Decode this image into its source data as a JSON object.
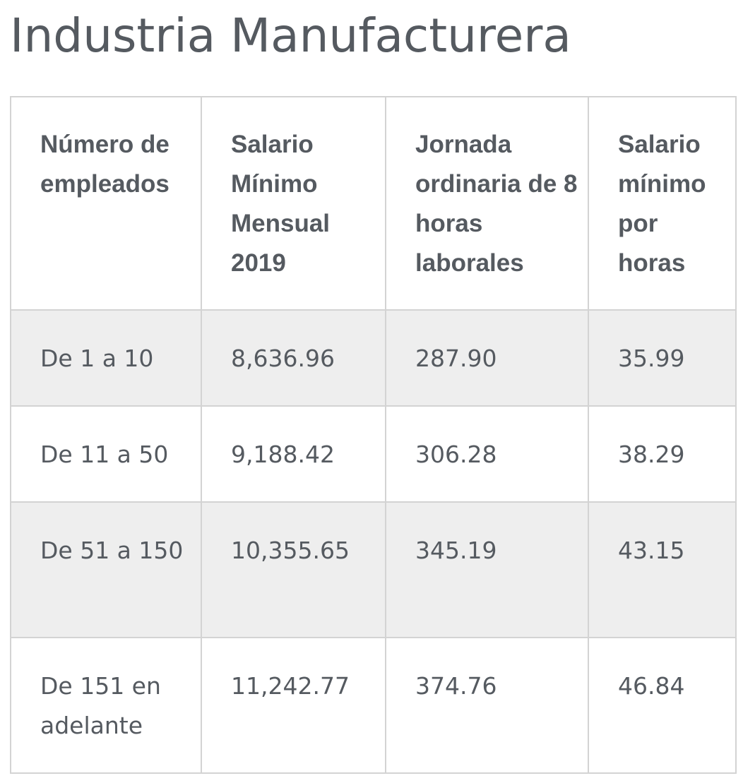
{
  "page": {
    "title": "Industria Manufacturera"
  },
  "table": {
    "headers": [
      "Número de empleados",
      "Salario Mínimo Mensual 2019",
      "Jornada ordinaria de 8 horas laborales",
      "Salario mínimo por horas"
    ],
    "rows": [
      [
        "De 1 a 10",
        "8,636.96",
        "287.90",
        "35.99"
      ],
      [
        "De 11 a 50",
        "9,188.42",
        "306.28",
        "38.29"
      ],
      [
        "De 51 a 150",
        "10,355.65",
        "345.19",
        "43.15"
      ],
      [
        "De 151 en adelante",
        "11,242.77",
        "374.76",
        "46.84"
      ]
    ]
  },
  "colors": {
    "text": "#555a60",
    "border": "#d3d3d3",
    "shaded_row": "#eeeeee",
    "background": "#ffffff"
  }
}
